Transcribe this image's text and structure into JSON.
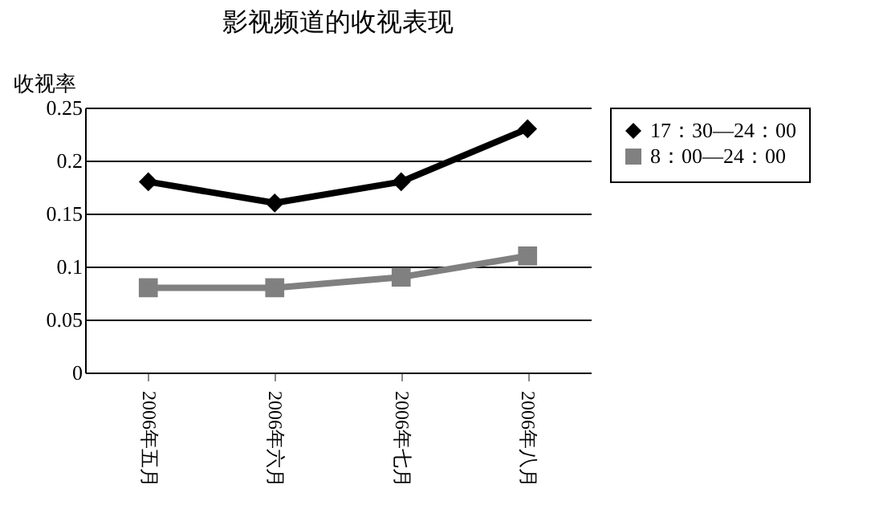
{
  "chart_data": {
    "type": "line",
    "title": "影视频道的收视表现",
    "ylabel": "收视率",
    "categories": [
      "2006年五月",
      "2006年六月",
      "2006年七月",
      "2006年八月"
    ],
    "series": [
      {
        "name": "17：30—24：00",
        "color": "#000000",
        "marker": "diamond",
        "values": [
          0.18,
          0.16,
          0.18,
          0.23
        ]
      },
      {
        "name": "8：00—24：00",
        "color": "#808080",
        "marker": "square",
        "values": [
          0.08,
          0.08,
          0.09,
          0.11
        ]
      }
    ],
    "ylim": [
      0,
      0.25
    ],
    "yticks": [
      0,
      0.05,
      0.1,
      0.15,
      0.2,
      0.25
    ],
    "grid": "y",
    "legend": "right"
  }
}
